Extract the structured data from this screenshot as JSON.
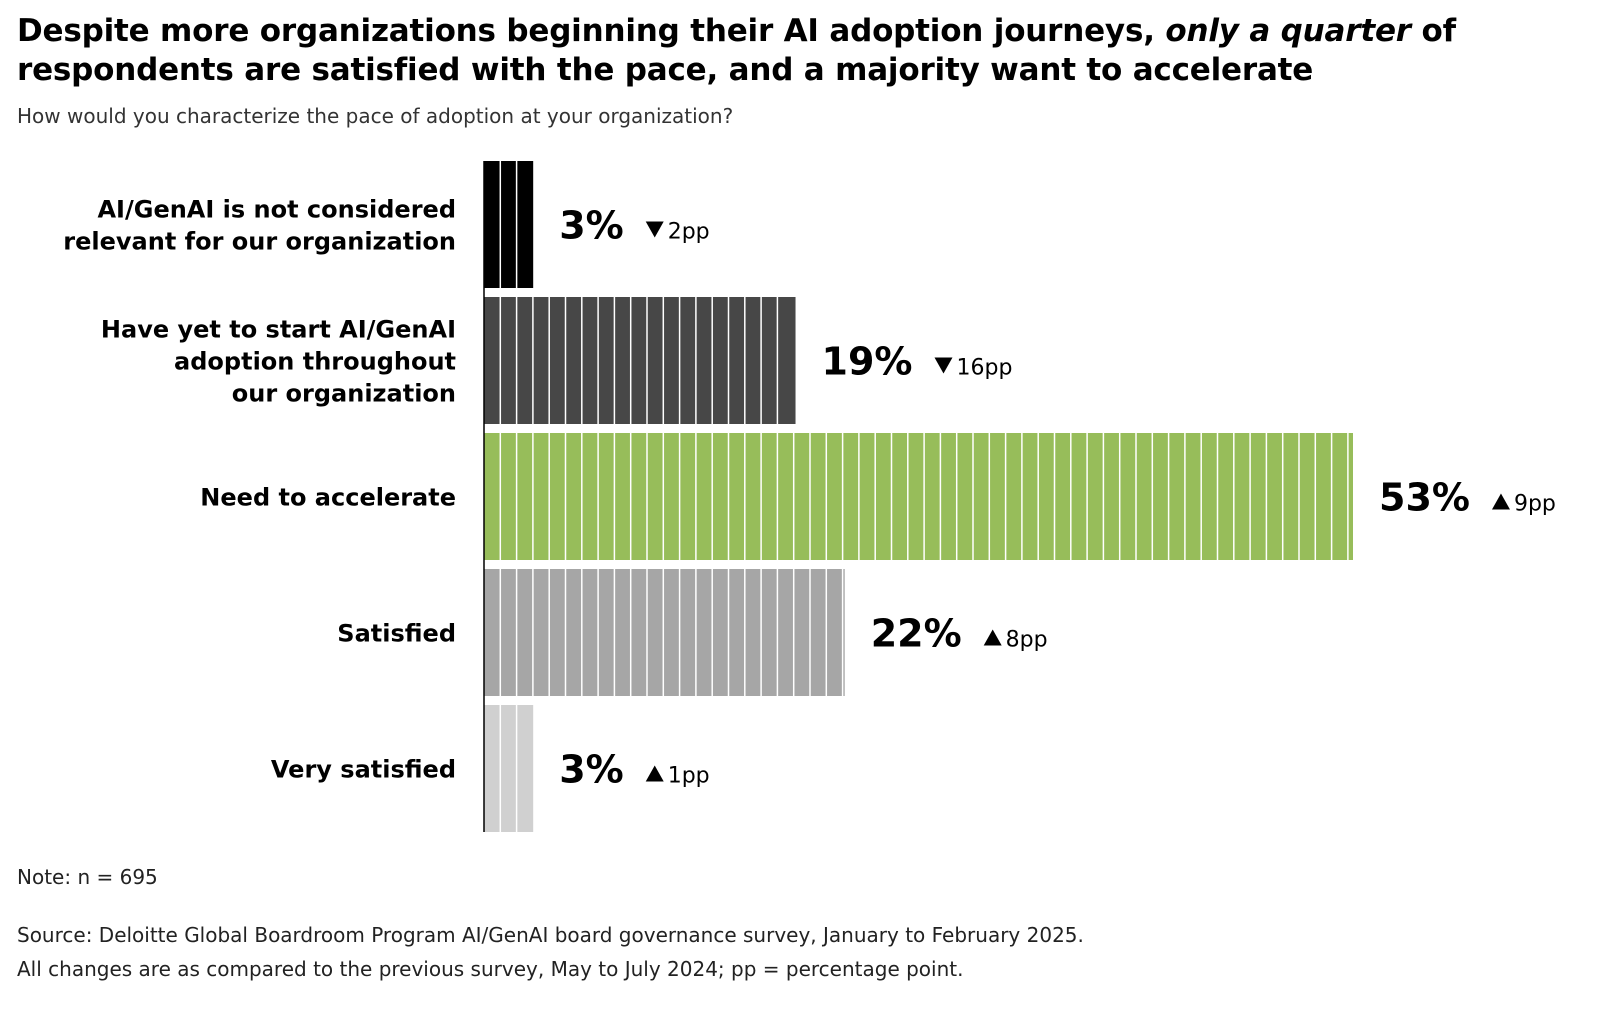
{
  "title": {
    "part1": "Despite more organizations beginning their AI adoption journeys, ",
    "emph": "only a quarter",
    "part2": " of respondents are satisfied with the pace, and a majority want to accelerate"
  },
  "subtitle": "How would you characterize the pace of adoption at your organization?",
  "chart_data": {
    "type": "bar",
    "orientation": "horizontal",
    "categories": [
      [
        "AI/GenAI is not considered",
        "relevant for our organization"
      ],
      [
        "Have yet to start AI/GenAI",
        "adoption throughout",
        "our organization"
      ],
      [
        "Need to accelerate"
      ],
      [
        "Satisfied"
      ],
      [
        "Very satisfied"
      ]
    ],
    "values": [
      3,
      19,
      53,
      22,
      3
    ],
    "value_labels": [
      "3%",
      "19%",
      "53%",
      "22%",
      "3%"
    ],
    "changes": [
      "2pp",
      "16pp",
      "9pp",
      "8pp",
      "1pp"
    ],
    "change_direction": [
      "down",
      "down",
      "up",
      "up",
      "up"
    ],
    "colors": [
      "#000000",
      "#474747",
      "#97bd5a",
      "#a6a6a6",
      "#d0d0d0"
    ],
    "xlim": [
      0,
      53
    ],
    "grid": false
  },
  "note": "Note: n = 695",
  "source": [
    "Source: Deloitte Global Boardroom Program AI/GenAI board governance survey, January to February 2025.",
    "All changes are as compared to the previous survey, May to July 2024; pp = percentage point."
  ]
}
